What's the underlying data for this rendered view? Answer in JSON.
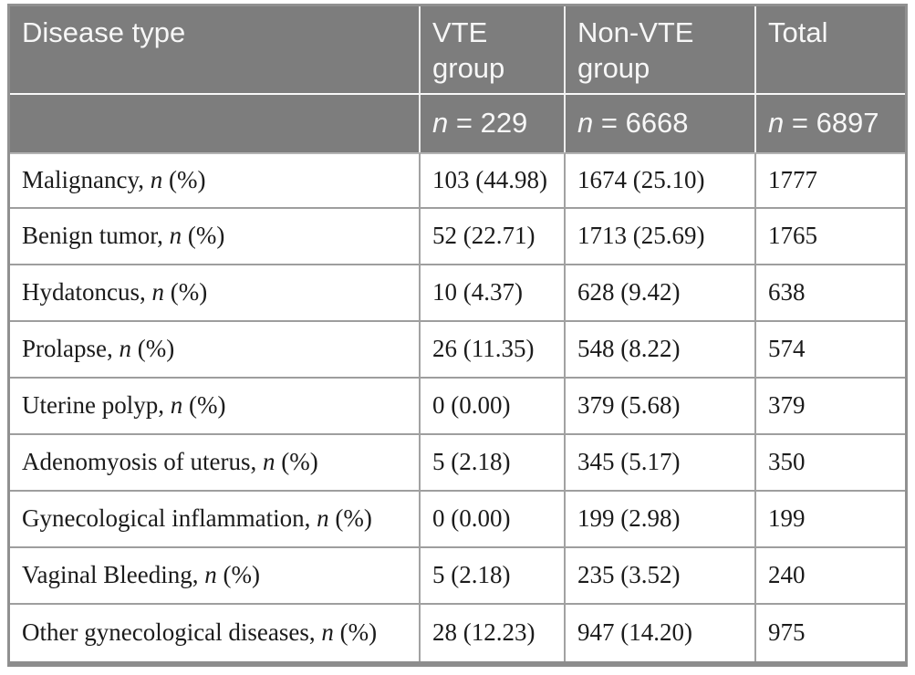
{
  "colors": {
    "header_background": "#7d7d7d",
    "header_text": "#f7f7f7",
    "body_text": "#1b1b1b",
    "grid_line": "#9e9e9e",
    "outer_border": "#909090"
  },
  "table": {
    "headers": [
      "Disease type",
      "VTE group",
      "Non-VTE group",
      "Total"
    ],
    "subheaders": [
      {
        "n": "",
        "value": ""
      },
      {
        "n": "n",
        "value": " = 229"
      },
      {
        "n": "n",
        "value": " = 6668"
      },
      {
        "n": "n",
        "value": " = 6897"
      }
    ],
    "rows": [
      {
        "prefix": "Malignancy, ",
        "n": "n",
        "suffix": " (%)",
        "vte": "103 (44.98)",
        "nonvte": "1674 (25.10)",
        "total": "1777"
      },
      {
        "prefix": "Benign tumor, ",
        "n": "n",
        "suffix": " (%)",
        "vte": "52 (22.71)",
        "nonvte": "1713 (25.69)",
        "total": "1765"
      },
      {
        "prefix": "Hydatoncus, ",
        "n": "n",
        "suffix": " (%)",
        "vte": "10 (4.37)",
        "nonvte": "628 (9.42)",
        "total": "638"
      },
      {
        "prefix": "Prolapse, ",
        "n": "n",
        "suffix": " (%)",
        "vte": "26 (11.35)",
        "nonvte": "548 (8.22)",
        "total": "574"
      },
      {
        "prefix": "Uterine polyp, ",
        "n": "n",
        "suffix": " (%)",
        "vte": "0 (0.00)",
        "nonvte": "379 (5.68)",
        "total": "379"
      },
      {
        "prefix": "Adenomyosis of uterus, ",
        "n": "n",
        "suffix": " (%)",
        "vte": "5 (2.18)",
        "nonvte": "345 (5.17)",
        "total": "350"
      },
      {
        "prefix": "Gynecological inflammation, ",
        "n": "n",
        "suffix": " (%)",
        "vte": "0 (0.00)",
        "nonvte": "199 (2.98)",
        "total": "199"
      },
      {
        "prefix": "Vaginal Bleeding, ",
        "n": "n",
        "suffix": " (%)",
        "vte": "5 (2.18)",
        "nonvte": "235 (3.52)",
        "total": "240"
      },
      {
        "prefix": "Other gynecological diseases, ",
        "n": "n",
        "suffix": " (%)",
        "vte": "28 (12.23)",
        "nonvte": "947 (14.20)",
        "total": "975"
      }
    ]
  },
  "chart_data": {
    "type": "table",
    "columns": [
      "Disease type",
      "VTE group (n = 229)",
      "Non-VTE group (n = 6668)",
      "Total (n = 6897)"
    ],
    "rows": [
      [
        "Malignancy, n (%)",
        "103 (44.98)",
        "1674 (25.10)",
        "1777"
      ],
      [
        "Benign tumor, n (%)",
        "52 (22.71)",
        "1713 (25.69)",
        "1765"
      ],
      [
        "Hydatoncus, n (%)",
        "10 (4.37)",
        "628 (9.42)",
        "638"
      ],
      [
        "Prolapse, n (%)",
        "26 (11.35)",
        "548 (8.22)",
        "574"
      ],
      [
        "Uterine polyp, n (%)",
        "0 (0.00)",
        "379 (5.68)",
        "379"
      ],
      [
        "Adenomyosis of uterus, n (%)",
        "5 (2.18)",
        "345 (5.17)",
        "350"
      ],
      [
        "Gynecological inflammation, n (%)",
        "0 (0.00)",
        "199 (2.98)",
        "199"
      ],
      [
        "Vaginal Bleeding, n (%)",
        "5 (2.18)",
        "235 (3.52)",
        "240"
      ],
      [
        "Other gynecological diseases, n (%)",
        "28 (12.23)",
        "947 (14.20)",
        "975"
      ]
    ]
  }
}
